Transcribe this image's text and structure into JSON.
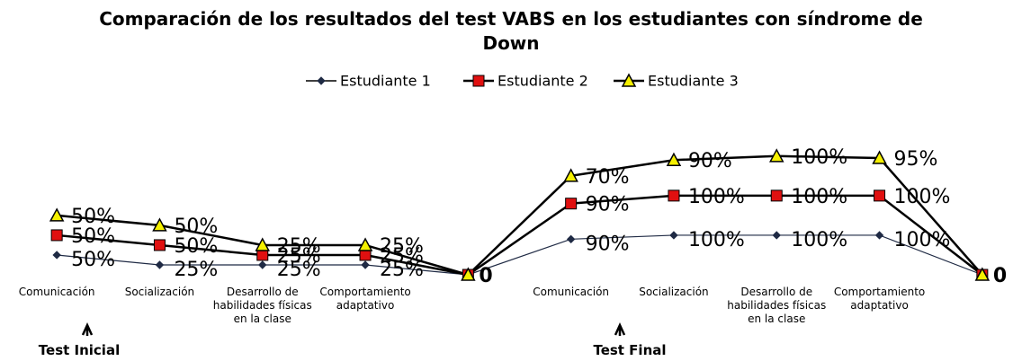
{
  "chart_data": {
    "type": "stacked-line",
    "title": "Comparación  de los resultados del test VABS en los estudiantes con  síndrome de Down",
    "categories": [
      "Comunicación",
      "Socialización",
      "Desarrollo de habilidades físicas en la clase",
      "Comportamiento adaptativo",
      null,
      "Comunicación",
      "Socialización",
      "Desarrollo de habilidades físicas en la clase",
      "Comportamiento adaptativo",
      null
    ],
    "series": [
      {
        "name": "Estudiante 1",
        "color": "#1f2a44",
        "marker": "diamond",
        "values": [
          50,
          25,
          25,
          25,
          0,
          90,
          100,
          100,
          100,
          0
        ],
        "value_labels": [
          "50%",
          "25%",
          "25%",
          "25%",
          null,
          "90%",
          "100%",
          "100%",
          "100%",
          null
        ]
      },
      {
        "name": "Estudiante 2",
        "color": "#e01010",
        "marker": "square",
        "values": [
          50,
          50,
          25,
          25,
          0,
          90,
          100,
          100,
          100,
          0
        ],
        "value_labels": [
          "50%",
          "50%",
          "25%",
          "25%",
          null,
          "90%",
          "100%",
          "100%",
          "100%",
          null
        ]
      },
      {
        "name": "Estudiante 3",
        "color": "#f5f000",
        "marker": "triangle",
        "values": [
          50,
          50,
          25,
          25,
          0,
          70,
          90,
          100,
          95,
          0
        ],
        "value_labels": [
          "50%",
          "50%",
          "25%",
          "25%",
          "0",
          "70%",
          "90%",
          "100%",
          "95%",
          "0"
        ]
      }
    ],
    "ylim": [
      0,
      320
    ],
    "annotations": [
      "Test Inicial",
      "Test Final"
    ],
    "legend": "top"
  }
}
